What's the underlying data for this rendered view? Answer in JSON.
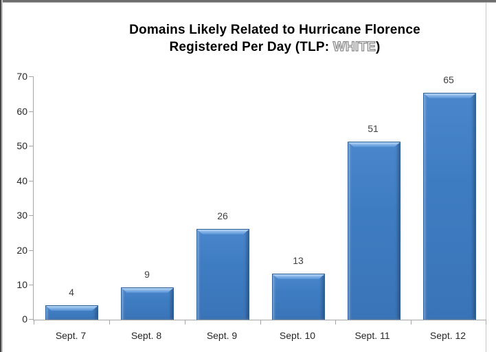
{
  "frame": {
    "top_edge_color": "#6e6e6e",
    "left_edge_color": "#474747",
    "chart_border_color": "#c8c8c8",
    "background": "#ffffff"
  },
  "chart_data": {
    "type": "bar",
    "title": "Domains Likely Related to Hurricane Florence Registered Per Day (TLP: WHITE)",
    "title_line1": "Domains Likely Related to Hurricane Florence",
    "title_line2_prefix": "Registered Per Day (TLP: ",
    "title_tlp_word": "WHITE",
    "title_line2_suffix": ")",
    "tlp_word_style": "white fill with gray outline",
    "categories": [
      "Sept. 7",
      "Sept. 8",
      "Sept. 9",
      "Sept. 10",
      "Sept. 11",
      "Sept. 12"
    ],
    "values": [
      4,
      9,
      26,
      13,
      51,
      65
    ],
    "data_labels": [
      "4",
      "9",
      "26",
      "13",
      "51",
      "65"
    ],
    "xlabel": "",
    "ylabel": "",
    "ylim": [
      0,
      70
    ],
    "y_tick_step": 10,
    "y_tick_labels": [
      "0",
      "10",
      "20",
      "30",
      "40",
      "50",
      "60",
      "70"
    ],
    "grid": false,
    "legend": "none",
    "colors": {
      "bar_fill": "#3e7cc1",
      "bar_border": "#2d5d93",
      "bar_bevel_highlight": "#b5d5f3",
      "axis_line": "#a6a6a6",
      "tick_label": "#262626",
      "data_label": "#3f3f3f",
      "title": "#000000",
      "tlp_outline": "#8a8a8a"
    }
  }
}
